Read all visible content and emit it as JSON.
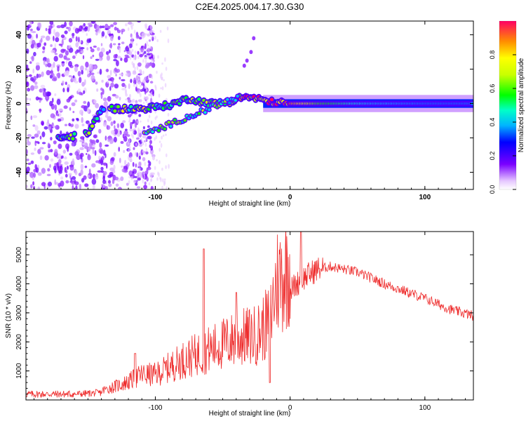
{
  "title": "C2E4.2025.004.17.30.G30",
  "colors": {
    "snr_line": "#ee2c2c",
    "axis": "#000000",
    "background": "#ffffff"
  },
  "chart_data": [
    {
      "type": "heatmap",
      "xlabel": "Height of straight line (km)",
      "ylabel": "Frequency (Hz)",
      "xlim": [
        -196,
        136
      ],
      "ylim": [
        -50,
        48
      ],
      "xticks": [
        -100,
        0,
        100
      ],
      "yticks": [
        -40,
        -20,
        0,
        20,
        40
      ],
      "colorbar": {
        "label": "Normalized spectral amplitude",
        "range": [
          0,
          1
        ],
        "ticks": [
          0.0,
          0.2,
          0.4,
          0.6,
          0.8
        ],
        "tick_labels": [
          "0.0",
          "0.2",
          "0.4",
          "0.6",
          "0.8"
        ]
      },
      "ridge": {
        "description": "dominant frequency track",
        "x": [
          -170,
          -150,
          -140,
          -130,
          -110,
          -100,
          -90,
          -75,
          -60,
          -45,
          -35,
          -25,
          -15,
          0,
          20,
          60,
          100,
          136
        ],
        "freq": [
          -20,
          -18,
          -3,
          -3,
          -3,
          -2,
          -1,
          3,
          0,
          1,
          4,
          3,
          1,
          0,
          0,
          0,
          0,
          0
        ],
        "amplitude": [
          0.55,
          0.7,
          0.5,
          0.6,
          0.7,
          0.6,
          0.55,
          0.6,
          0.6,
          0.65,
          0.9,
          0.9,
          1.0,
          0.9,
          0.6,
          0.4,
          0.35,
          0.35
        ]
      }
    },
    {
      "type": "line",
      "xlabel": "Height of straight line (km)",
      "ylabel": "SNR (10 * v/v)",
      "xlim": [
        -196,
        136
      ],
      "ylim": [
        0,
        5800
      ],
      "xticks": [
        -100,
        0,
        100
      ],
      "yticks": [
        1000,
        2000,
        3000,
        4000,
        5000
      ],
      "envelope": {
        "x": [
          -196,
          -160,
          -140,
          -120,
          -110,
          -100,
          -80,
          -60,
          -40,
          -25,
          -15,
          -10,
          -5,
          0,
          10,
          20,
          30,
          50,
          70,
          100,
          120,
          136
        ],
        "y": [
          200,
          200,
          250,
          500,
          700,
          700,
          1100,
          1400,
          1700,
          1800,
          2200,
          3300,
          3500,
          3800,
          4200,
          4500,
          4600,
          4400,
          4000,
          3500,
          3100,
          2900
        ]
      },
      "spikes": [
        {
          "x": -115,
          "y": 1600
        },
        {
          "x": -64,
          "y": 5200
        },
        {
          "x": -40,
          "y": 3700
        },
        {
          "x": -15,
          "y": 600
        },
        {
          "x": 8,
          "y": 5800
        }
      ]
    }
  ]
}
